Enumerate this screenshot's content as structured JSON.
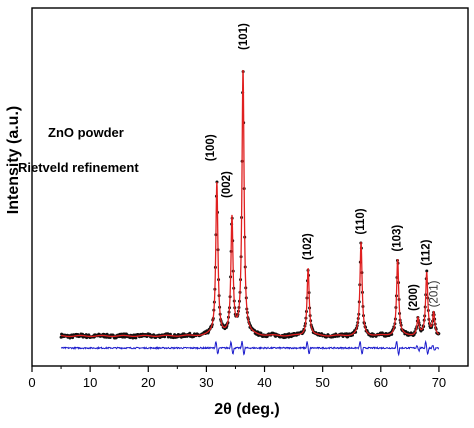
{
  "chart_data": {
    "type": "line",
    "title": "",
    "xlabel": "2θ (deg.)",
    "ylabel": "Intensity (a.u.)",
    "xlim": [
      0,
      75
    ],
    "ylim": [
      0,
      100
    ],
    "x_ticks": [
      0,
      10,
      20,
      30,
      40,
      50,
      60,
      70
    ],
    "y_ticks_shown": false,
    "grid": false,
    "legend": "none",
    "annotations": [
      "ZnO powder",
      "Rietveld refinement"
    ],
    "peaks": [
      {
        "hkl": "(100)",
        "x": 31.8,
        "y": 57
      },
      {
        "hkl": "(002)",
        "x": 34.4,
        "y": 44
      },
      {
        "hkl": "(101)",
        "x": 36.3,
        "y": 97
      },
      {
        "hkl": "(102)",
        "x": 47.5,
        "y": 27
      },
      {
        "hkl": "(110)",
        "x": 56.6,
        "y": 36
      },
      {
        "hkl": "(103)",
        "x": 62.9,
        "y": 30
      },
      {
        "hkl": "(200)",
        "x": 66.4,
        "y": 9
      },
      {
        "hkl": "(112)",
        "x": 67.9,
        "y": 25
      },
      {
        "hkl": "(201)",
        "x": 69.1,
        "y": 11
      }
    ],
    "background_level": 3,
    "difference_offset": -4.5,
    "x_range_data": [
      5,
      70
    ],
    "colors": {
      "observed": "#111111",
      "calculated": "#e02020",
      "difference": "#1a1acc",
      "axes": "#000000"
    }
  }
}
